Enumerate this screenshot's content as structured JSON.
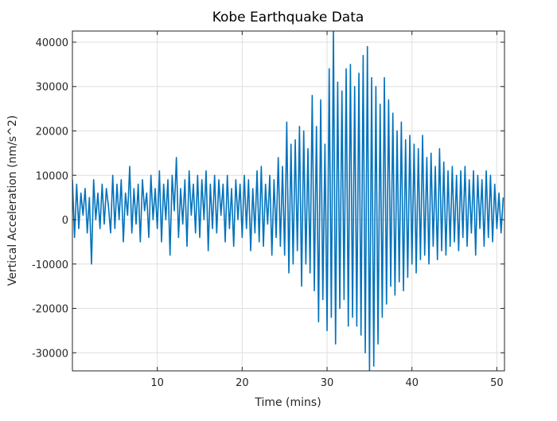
{
  "chart_data": {
    "type": "line",
    "title": "Kobe Earthquake Data",
    "x_label": "Time (mins)",
    "y_label": "Vertical Acceleration (nm/s^2)",
    "color": "#0072BD",
    "grid": true,
    "xlim": [
      0,
      50.9
    ],
    "ylim": [
      -34080,
      42511
    ],
    "xticks": [
      10,
      20,
      30,
      40,
      50
    ],
    "yticks": [
      -30000,
      -20000,
      -10000,
      0,
      10000,
      20000,
      30000,
      40000
    ],
    "x": [
      0,
      0.25,
      0.5,
      0.75,
      1,
      1.25,
      1.5,
      1.75,
      2,
      2.25,
      2.5,
      2.75,
      3,
      3.25,
      3.5,
      3.75,
      4,
      4.25,
      4.5,
      4.75,
      5,
      5.25,
      5.5,
      5.75,
      6,
      6.25,
      6.5,
      6.75,
      7,
      7.25,
      7.5,
      7.75,
      8,
      8.25,
      8.5,
      8.75,
      9,
      9.25,
      9.5,
      9.75,
      10,
      10.25,
      10.5,
      10.75,
      11,
      11.25,
      11.5,
      11.75,
      12,
      12.25,
      12.5,
      12.75,
      13,
      13.25,
      13.5,
      13.75,
      14,
      14.25,
      14.5,
      14.75,
      15,
      15.25,
      15.5,
      15.75,
      16,
      16.25,
      16.5,
      16.75,
      17,
      17.25,
      17.5,
      17.75,
      18,
      18.25,
      18.5,
      18.75,
      19,
      19.25,
      19.5,
      19.75,
      20,
      20.25,
      20.5,
      20.75,
      21,
      21.25,
      21.5,
      21.75,
      22,
      22.25,
      22.5,
      22.75,
      23,
      23.25,
      23.5,
      23.75,
      24,
      24.25,
      24.5,
      24.75,
      25,
      25.25,
      25.5,
      25.75,
      26,
      26.25,
      26.5,
      26.75,
      27,
      27.25,
      27.5,
      27.75,
      28,
      28.25,
      28.5,
      28.75,
      29,
      29.25,
      29.5,
      29.75,
      30,
      30.25,
      30.5,
      30.75,
      31,
      31.25,
      31.5,
      31.75,
      32,
      32.25,
      32.5,
      32.75,
      33,
      33.25,
      33.5,
      33.75,
      34,
      34.25,
      34.5,
      34.75,
      35,
      35.25,
      35.5,
      35.75,
      36,
      36.25,
      36.5,
      36.75,
      37,
      37.25,
      37.5,
      37.75,
      38,
      38.25,
      38.5,
      38.75,
      39,
      39.25,
      39.5,
      39.75,
      40,
      40.25,
      40.5,
      40.75,
      41,
      41.25,
      41.5,
      41.75,
      42,
      42.25,
      42.5,
      42.75,
      43,
      43.25,
      43.5,
      43.75,
      44,
      44.25,
      44.5,
      44.75,
      45,
      45.25,
      45.5,
      45.75,
      46,
      46.25,
      46.5,
      46.75,
      47,
      47.25,
      47.5,
      47.75,
      48,
      48.25,
      48.5,
      48.75,
      49,
      49.25,
      49.5,
      49.75,
      50,
      50.25,
      50.5,
      50.75
    ],
    "values": [
      9000,
      -4000,
      8000,
      -2000,
      6000,
      1000,
      7000,
      -3000,
      5000,
      -10000,
      9000,
      0,
      6000,
      -2000,
      8000,
      -1000,
      7000,
      3000,
      -3000,
      10000,
      -2000,
      8000,
      0,
      9000,
      -5000,
      6000,
      1000,
      12000,
      -3000,
      7000,
      -1000,
      8000,
      -5000,
      9000,
      2000,
      6000,
      -4000,
      10000,
      0,
      7000,
      -2000,
      11000,
      -5000,
      8000,
      0,
      9000,
      -8000,
      10000,
      2000,
      14000,
      -4000,
      7000,
      -1000,
      9000,
      -6000,
      11000,
      1000,
      8000,
      -3000,
      10000,
      -4000,
      9000,
      0,
      11000,
      -7000,
      8000,
      -2000,
      10000,
      -3000,
      9000,
      1000,
      8000,
      -5000,
      10000,
      -2000,
      7000,
      -6000,
      9000,
      0,
      8000,
      -4000,
      10000,
      -2000,
      9000,
      -7000,
      7000,
      -3000,
      11000,
      -5000,
      12000,
      -6000,
      8000,
      -1000,
      10000,
      -8000,
      9000,
      -4000,
      14000,
      -6000,
      12000,
      -8000,
      22000,
      -12000,
      17000,
      -10000,
      18000,
      -7000,
      21000,
      -15000,
      20000,
      -10000,
      16000,
      -12000,
      28000,
      -16000,
      21000,
      -23000,
      27000,
      -18000,
      17000,
      -25000,
      34000,
      -22000,
      43000,
      -28000,
      31000,
      -20000,
      29000,
      -18000,
      34000,
      -24000,
      35000,
      -22000,
      30000,
      -24000,
      33000,
      -26000,
      37000,
      -30000,
      39000,
      -34000,
      32000,
      -33000,
      30000,
      -28000,
      26000,
      -22000,
      32000,
      -19000,
      27000,
      -15000,
      24000,
      -17000,
      20000,
      -14000,
      22000,
      -16000,
      18000,
      -13000,
      19000,
      -10000,
      17000,
      -12000,
      16000,
      -9000,
      19000,
      -8000,
      14000,
      -10000,
      15000,
      -6000,
      12000,
      -9000,
      16000,
      -7000,
      13000,
      -8000,
      11000,
      -6000,
      12000,
      -5000,
      10000,
      -7000,
      11000,
      -4000,
      12000,
      -6000,
      9000,
      -3000,
      11000,
      -8000,
      10000,
      -2000,
      9000,
      -6000,
      11000,
      -4000,
      10000,
      -5000,
      8000,
      -2000,
      6000,
      -3000,
      5000
    ]
  }
}
